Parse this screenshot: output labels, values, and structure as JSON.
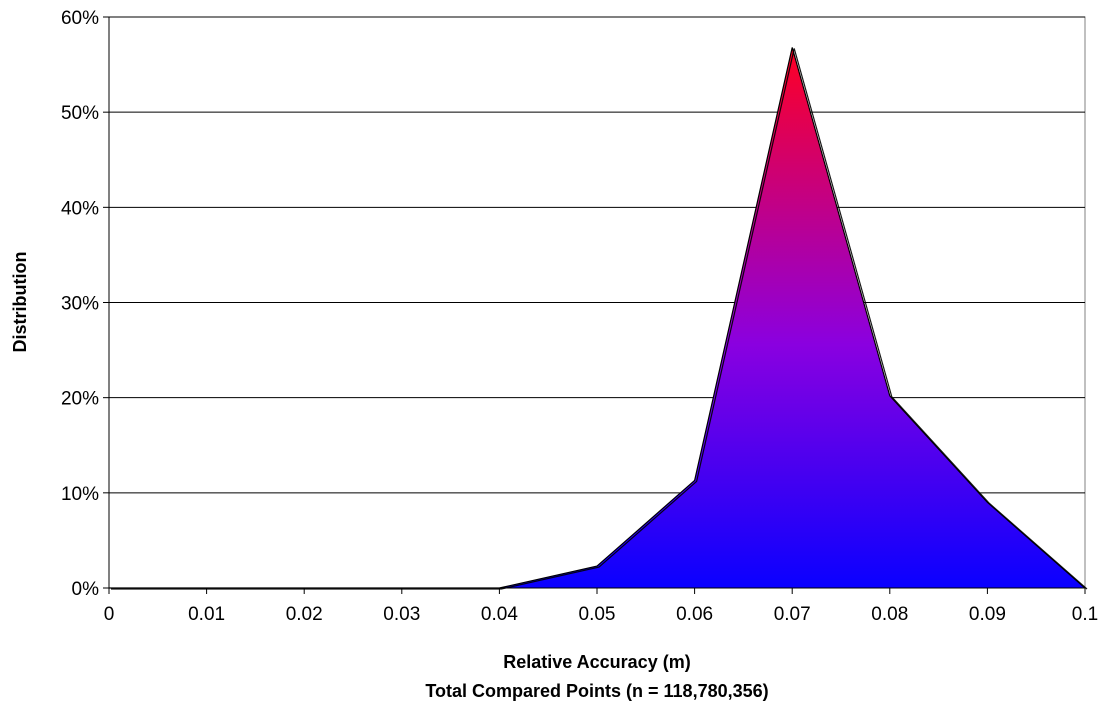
{
  "chart_data": {
    "type": "area",
    "xlabel": "Relative Accuracy (m)",
    "xlabel_line2": "Total Compared Points (n = 118,780,356)",
    "ylabel": "Distribution",
    "x": [
      0,
      0.01,
      0.02,
      0.03,
      0.04,
      0.05,
      0.06,
      0.07,
      0.08,
      0.09,
      0.1
    ],
    "x_tick_labels": [
      "0",
      "0.01",
      "0.02",
      "0.03",
      "0.04",
      "0.05",
      "0.06",
      "0.07",
      "0.08",
      "0.09",
      "0.1"
    ],
    "y_tick_labels": [
      "0%",
      "10%",
      "20%",
      "30%",
      "40%",
      "50%",
      "60%"
    ],
    "y_ticks": [
      0,
      10,
      20,
      30,
      40,
      50,
      60
    ],
    "series": [
      {
        "values": [
          0,
          0,
          0,
          0,
          0,
          2.3,
          11.3,
          56.8,
          20.2,
          9.0,
          0
        ]
      }
    ],
    "xlim": [
      0,
      0.1
    ],
    "ylim": [
      0,
      60
    ],
    "grid": "horizontal",
    "legend": "none",
    "fill_gradient": {
      "top": "#ff0022",
      "middle": "#8a00e0",
      "bottom": "#0a00ff"
    },
    "outline_color": "#000000"
  }
}
